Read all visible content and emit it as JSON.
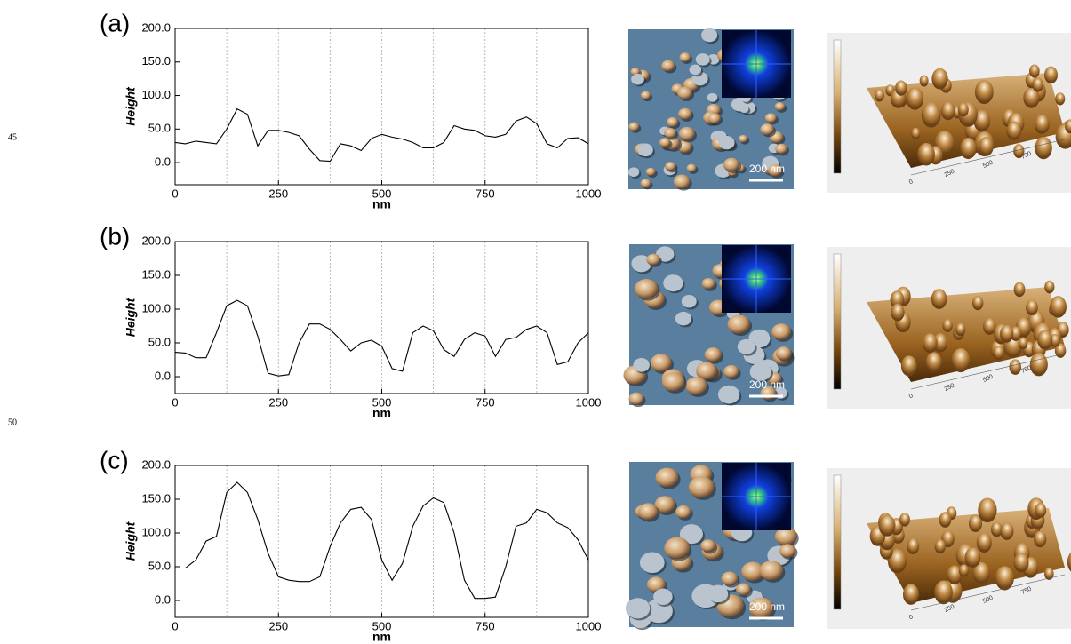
{
  "chart_data": [
    {
      "type": "line",
      "panel_label": "(a)",
      "y_label": "Height",
      "x_label": "nm",
      "x": [
        0,
        25,
        50,
        75,
        100,
        125,
        150,
        175,
        200,
        225,
        250,
        275,
        300,
        325,
        350,
        375,
        400,
        425,
        450,
        475,
        500,
        525,
        550,
        575,
        600,
        625,
        650,
        675,
        700,
        725,
        750,
        775,
        800,
        825,
        850,
        875,
        900,
        925,
        950,
        975,
        1000
      ],
      "series": [
        {
          "color": "#000000",
          "values": [
            30,
            28,
            32,
            30,
            28,
            50,
            80,
            72,
            25,
            48,
            48,
            45,
            40,
            20,
            3,
            2,
            28,
            25,
            18,
            36,
            42,
            38,
            35,
            30,
            22,
            22,
            30,
            55,
            50,
            48,
            40,
            38,
            42,
            62,
            68,
            58,
            28,
            22,
            36,
            37,
            28
          ]
        }
      ],
      "xlim": [
        0,
        1000
      ],
      "xticks": [
        0,
        250,
        500,
        750,
        1000
      ],
      "x_grid": [
        125,
        250,
        375,
        500,
        625,
        750,
        875
      ],
      "ylim": [
        -33,
        200
      ],
      "yticks": [
        {
          "value": 0,
          "label": "0.0"
        },
        {
          "value": 50,
          "label": "50.0"
        },
        {
          "value": 100,
          "label": "100.0"
        },
        {
          "value": 150,
          "label": "150.0"
        },
        {
          "value": 200,
          "label": "200.0"
        }
      ]
    },
    {
      "type": "line",
      "panel_label": "(b)",
      "y_label": "Height",
      "x_label": "nm",
      "x": [
        0,
        25,
        50,
        75,
        100,
        125,
        150,
        175,
        200,
        225,
        250,
        275,
        300,
        325,
        350,
        375,
        400,
        425,
        450,
        475,
        500,
        525,
        550,
        575,
        600,
        625,
        650,
        675,
        700,
        725,
        750,
        775,
        800,
        825,
        850,
        875,
        900,
        925,
        950,
        975,
        1000
      ],
      "series": [
        {
          "color": "#000000",
          "values": [
            36,
            35,
            28,
            28,
            65,
            105,
            113,
            105,
            60,
            5,
            1,
            3,
            50,
            78,
            78,
            70,
            55,
            38,
            50,
            54,
            45,
            12,
            8,
            65,
            75,
            68,
            40,
            30,
            55,
            65,
            60,
            30,
            55,
            58,
            70,
            75,
            65,
            18,
            22,
            50,
            65
          ]
        }
      ],
      "xlim": [
        0,
        1000
      ],
      "xticks": [
        0,
        250,
        500,
        750,
        1000
      ],
      "x_grid": [
        125,
        250,
        375,
        500,
        625,
        750,
        875
      ],
      "ylim": [
        -25,
        200
      ],
      "yticks": [
        {
          "value": 0,
          "label": "0.0"
        },
        {
          "value": 50,
          "label": "50.0"
        },
        {
          "value": 100,
          "label": "100.0"
        },
        {
          "value": 150,
          "label": "150.0"
        },
        {
          "value": 200,
          "label": "200.0"
        }
      ]
    },
    {
      "type": "line",
      "panel_label": "(c)",
      "y_label": "Height",
      "x_label": "nm",
      "x": [
        0,
        25,
        50,
        75,
        100,
        125,
        150,
        175,
        200,
        225,
        250,
        275,
        300,
        325,
        350,
        375,
        400,
        425,
        450,
        475,
        500,
        525,
        550,
        575,
        600,
        625,
        650,
        675,
        700,
        725,
        750,
        775,
        800,
        825,
        850,
        875,
        900,
        925,
        950,
        975,
        1000
      ],
      "series": [
        {
          "color": "#000000",
          "values": [
            48,
            48,
            60,
            88,
            95,
            160,
            175,
            160,
            120,
            70,
            35,
            30,
            28,
            28,
            35,
            80,
            115,
            135,
            138,
            120,
            60,
            30,
            55,
            110,
            140,
            152,
            145,
            100,
            30,
            3,
            3,
            5,
            50,
            110,
            115,
            135,
            130,
            115,
            108,
            90,
            60
          ]
        }
      ],
      "xlim": [
        0,
        1000
      ],
      "xticks": [
        0,
        250,
        500,
        750,
        1000
      ],
      "x_grid": [
        125,
        250,
        375,
        500,
        625,
        750,
        875
      ],
      "ylim": [
        -25,
        200
      ],
      "yticks": [
        {
          "value": 0,
          "label": "0.0"
        },
        {
          "value": 50,
          "label": "50.0"
        },
        {
          "value": 100,
          "label": "100.0"
        },
        {
          "value": 150,
          "label": "150.0"
        },
        {
          "value": 200,
          "label": "200.0"
        }
      ]
    }
  ],
  "margin_numbers": [
    "45",
    "50"
  ],
  "micrographs": [
    {
      "scale_bar": "200 nm",
      "surface_axis_labels": [
        "0",
        "250",
        "500",
        "750"
      ]
    },
    {
      "scale_bar": "200 nm",
      "surface_axis_labels": [
        "0",
        "250",
        "500",
        "750"
      ]
    },
    {
      "scale_bar": "200 nm",
      "surface_axis_labels": [
        "0",
        "250",
        "500",
        "750"
      ]
    }
  ]
}
